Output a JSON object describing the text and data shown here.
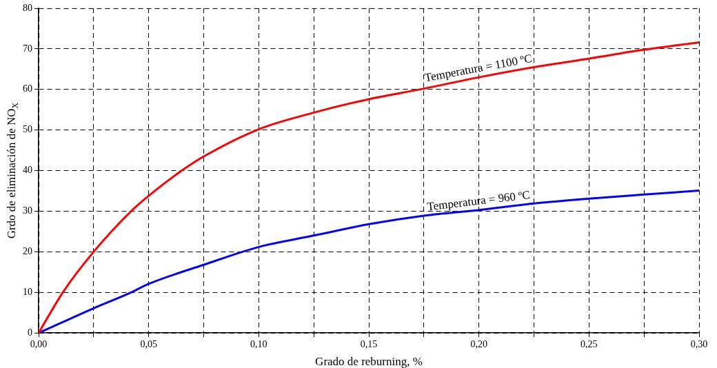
{
  "chart_data": {
    "type": "line",
    "xlabel": "Grado de reburning, %",
    "ylabel": "Grdo de eliminación de NO$_{X}$",
    "xlim": [
      0,
      0.3
    ],
    "xticks": [
      {
        "value": 0,
        "label": "0,00"
      },
      {
        "value": 0.025,
        "label": null
      },
      {
        "value": 0.05,
        "label": "0,05"
      },
      {
        "value": 0.075,
        "label": null
      },
      {
        "value": 0.1,
        "label": "0,10"
      },
      {
        "value": 0.125,
        "label": null
      },
      {
        "value": 0.15,
        "label": "0,15"
      },
      {
        "value": 0.175,
        "label": null
      },
      {
        "value": 0.2,
        "label": "0,20"
      },
      {
        "value": 0.225,
        "label": null
      },
      {
        "value": 0.25,
        "label": "0,25"
      },
      {
        "value": 0.275,
        "label": null
      },
      {
        "value": 0.3,
        "label": "0,30"
      }
    ],
    "ylim": [
      0,
      80
    ],
    "yticks": [
      0,
      10,
      20,
      30,
      40,
      50,
      60,
      70,
      80
    ],
    "grid": true,
    "legend": false,
    "marker": "none",
    "line_style": "solid",
    "series": [
      {
        "name": "Temperatura = 1100 ºC",
        "color": "#ff0000",
        "x": [
          0,
          0.011,
          0.025,
          0.042,
          0.05,
          0.065,
          0.075,
          0.1,
          0.125,
          0.15,
          0.175,
          0.2,
          0.225,
          0.25,
          0.275,
          0.3
        ],
        "values": [
          0,
          10,
          20,
          30,
          33.8,
          40,
          43.5,
          50.2,
          54.3,
          57.6,
          60.2,
          63,
          65.5,
          67.6,
          69.8,
          71.6
        ]
      },
      {
        "name": "Temperatura = 960 ºC",
        "color": "#0000ff",
        "x": [
          0,
          0.025,
          0.042,
          0.05,
          0.075,
          0.1,
          0.125,
          0.15,
          0.175,
          0.2,
          0.225,
          0.25,
          0.275,
          0.3
        ],
        "values": [
          0,
          6.1,
          10,
          12.1,
          16.8,
          21.2,
          24,
          26.8,
          28.9,
          30.3,
          31.9,
          33.1,
          34.1,
          35.1
        ]
      }
    ]
  }
}
